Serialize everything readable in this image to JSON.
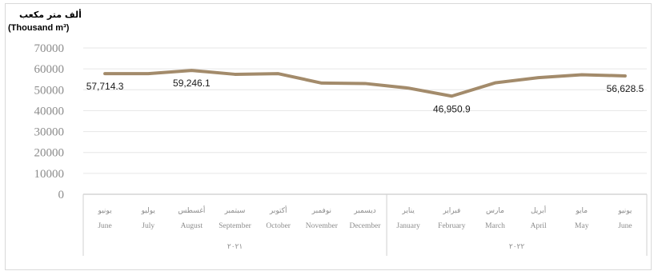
{
  "chart_data": {
    "type": "line",
    "unit_label_ar": "ألف متر مكعب",
    "unit_label_en": "(Thousand m³)",
    "ylim": [
      0,
      70000
    ],
    "yticks": [
      "70000",
      "60000",
      "50000",
      "40000",
      "30000",
      "20000",
      "10000",
      "0"
    ],
    "ytick_values": [
      70000,
      60000,
      50000,
      40000,
      30000,
      20000,
      10000,
      0
    ],
    "categories_ar": [
      "يونيو",
      "يوليو",
      "أغسطس",
      "سبتمبر",
      "أكتوبر",
      "نوفمبر",
      "ديسمبر",
      "يناير",
      "فبراير",
      "مارس",
      "أبريل",
      "مايو",
      "يونيو"
    ],
    "categories_en": [
      "June",
      "July",
      "August",
      "September",
      "October",
      "November",
      "December",
      "January",
      "February",
      "March",
      "April",
      "May",
      "June"
    ],
    "years": [
      {
        "label": "٢٠٢١",
        "count": 7
      },
      {
        "label": "٢٠٢٢",
        "count": 6
      }
    ],
    "series": [
      {
        "values": [
          57714.3,
          57700,
          59246.1,
          57400,
          57700,
          53200,
          53000,
          50800,
          46950.9,
          53300,
          55800,
          57200,
          56628.5
        ]
      }
    ],
    "data_labels": [
      {
        "index": 0,
        "text": "57,714.3"
      },
      {
        "index": 2,
        "text": "59,246.1"
      },
      {
        "index": 8,
        "text": "46,950.9"
      },
      {
        "index": 12,
        "text": "56,628.5"
      }
    ],
    "line_color": "#a38b6b",
    "grid": true
  }
}
